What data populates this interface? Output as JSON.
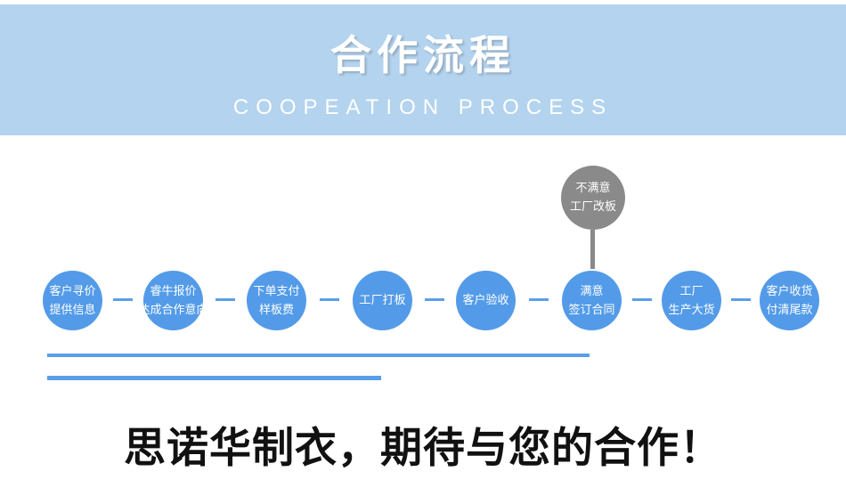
{
  "banner": {
    "title": "合作流程",
    "subtitle": "COOPEATION PROCESS",
    "bg_color": "#b3d3ee",
    "text_color": "#ffffff"
  },
  "flow": {
    "reject_node": {
      "line1": "不满意",
      "line2": "工厂改板",
      "color": "#8a8a8a"
    },
    "node_color": "#539be8",
    "connector_color": "#5b9ee8",
    "steps": [
      {
        "line1": "客户寻价",
        "line2": "提供信息"
      },
      {
        "line1": "睿牛报价",
        "line2": "达成合作意向"
      },
      {
        "line1": "下单支付",
        "line2": "样板费"
      },
      {
        "line1": "工厂打板",
        "line2": ""
      },
      {
        "line1": "客户验收",
        "line2": ""
      },
      {
        "line1": "满意",
        "line2": "签订合同"
      },
      {
        "line1": "工厂",
        "line2": "生产大货"
      },
      {
        "line1": "客户收货",
        "line2": "付清尾款"
      }
    ]
  },
  "divider_lines": {
    "color": "#5b9ee8"
  },
  "footer": {
    "slogan": "思诺华制衣，期待与您的合作！",
    "color": "#111111"
  }
}
